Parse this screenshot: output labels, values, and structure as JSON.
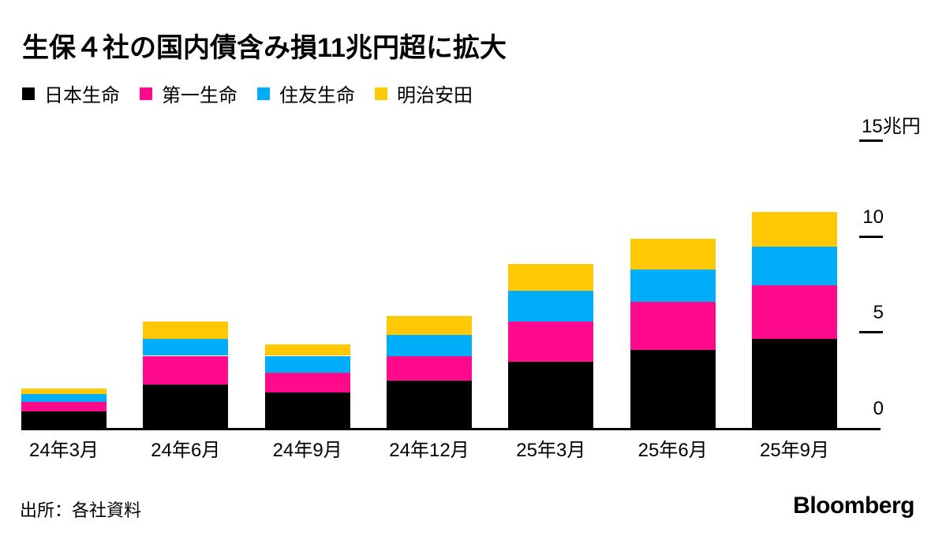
{
  "page": {
    "background": "#ffffff"
  },
  "header": {
    "title": "生保４社の国内債含み損11兆円超に拡大"
  },
  "legend": {
    "items": [
      {
        "key": "nippon-life",
        "label": "日本生命",
        "color": "#000000"
      },
      {
        "key": "dai-ichi-life",
        "label": "第一生命",
        "color": "#FF0A8C"
      },
      {
        "key": "sumitomo-life",
        "label": "住友生命",
        "color": "#00ADF8"
      },
      {
        "key": "meiji-yasuda",
        "label": "明治安田",
        "color": "#FFC805"
      }
    ]
  },
  "chart_data": {
    "type": "bar",
    "stacked": true,
    "title": "生保４社の国内債含み損11兆円超に拡大",
    "unit": "兆円",
    "categories": [
      "24年3月",
      "24年6月",
      "24年9月",
      "24年12月",
      "25年3月",
      "25年6月",
      "25年9月"
    ],
    "series": [
      {
        "key": "nippon-life",
        "name": "日本生命",
        "color": "#000000",
        "values": [
          0.9,
          2.3,
          1.9,
          2.5,
          3.5,
          4.1,
          4.7
        ]
      },
      {
        "key": "dai-ichi-life",
        "name": "第一生命",
        "color": "#FF0A8C",
        "values": [
          0.5,
          1.5,
          1.0,
          1.3,
          2.1,
          2.5,
          2.8
        ]
      },
      {
        "key": "sumitomo-life",
        "name": "住友生命",
        "color": "#00ADF8",
        "values": [
          0.4,
          0.9,
          0.9,
          1.1,
          1.6,
          1.7,
          2.0
        ]
      },
      {
        "key": "meiji-yasuda",
        "name": "明治安田",
        "color": "#FFC805",
        "values": [
          0.3,
          0.9,
          0.6,
          1.0,
          1.4,
          1.6,
          1.8
        ]
      }
    ],
    "totals": [
      2.1,
      5.6,
      4.4,
      5.9,
      8.6,
      9.9,
      11.3
    ],
    "ylim": [
      0,
      15
    ],
    "yticks": [
      {
        "label": "0",
        "value": 0,
        "align": "right"
      },
      {
        "label": "5",
        "value": 5,
        "align": "right"
      },
      {
        "label": "10",
        "value": 10,
        "align": "right"
      },
      {
        "label": "15兆円",
        "value": 15,
        "align": "left"
      }
    ],
    "grid": false,
    "legend_position": "top"
  },
  "footer": {
    "source": "出所：各社資料",
    "brand": "Bloomberg"
  }
}
